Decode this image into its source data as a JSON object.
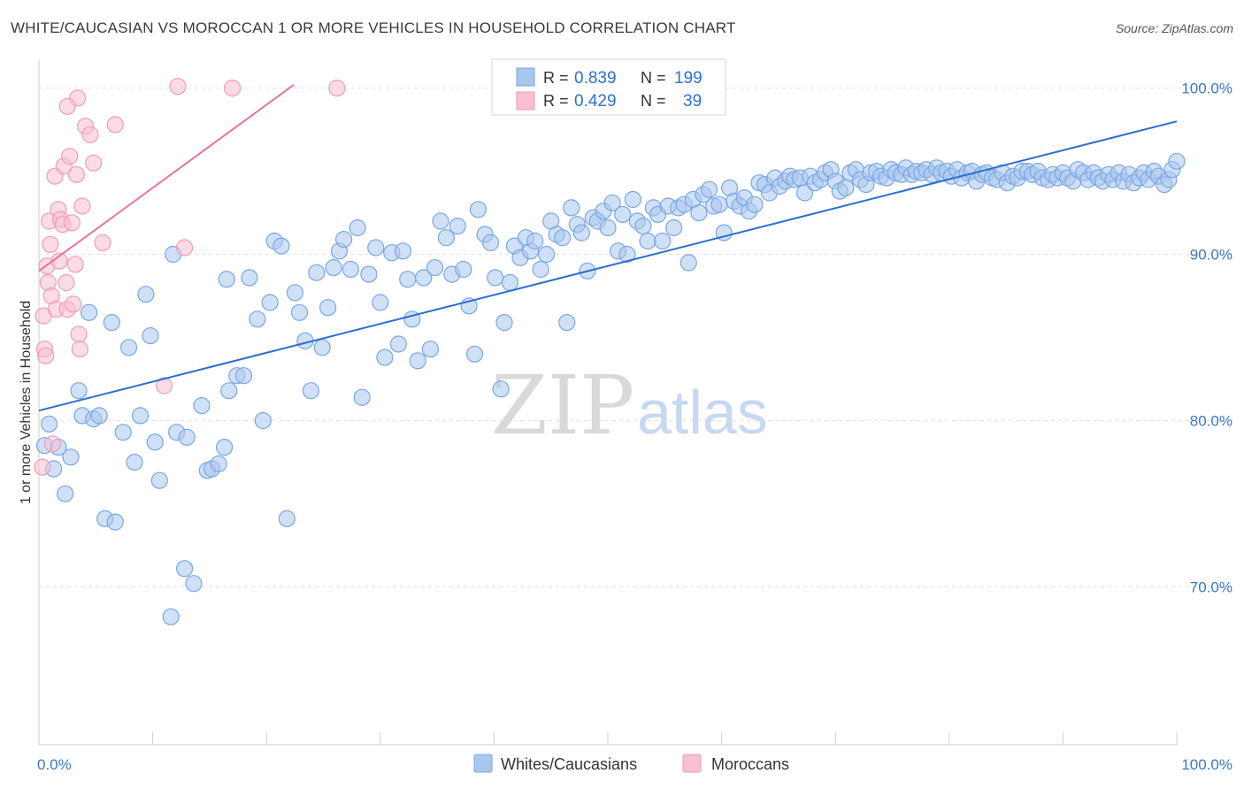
{
  "title": "WHITE/CAUCASIAN VS MOROCCAN 1 OR MORE VEHICLES IN HOUSEHOLD CORRELATION CHART",
  "source": "Source: ZipAtlas.com",
  "watermark": {
    "zip": "ZIP",
    "atlas": "atlas"
  },
  "legend": {
    "rows": [
      {
        "r_label": "R =",
        "r_value": "0.839",
        "n_label": "N =",
        "n_value": "199",
        "color": "#8fb4e8"
      },
      {
        "r_label": "R =",
        "r_value": "0.429",
        "n_label": "N =",
        "n_value": "39",
        "color": "#f4a6bf"
      }
    ]
  },
  "bottom_legend": [
    "Whites/Caucasians",
    "Moroccans"
  ],
  "colors": {
    "blue_fill": "#a9c6ef",
    "blue_stroke": "#7aa6e3",
    "blue_line": "#2a6fce",
    "pink_fill": "#f7bfd1",
    "pink_stroke": "#ef9bb8",
    "pink_line": "#e8739a",
    "grid": "#e2e2e2",
    "axis_text": "#3b78c4"
  },
  "chart_data": {
    "type": "scatter",
    "xlabel": "",
    "ylabel": "1 or more Vehicles in Household",
    "x_tick_labels": [
      "0.0%",
      "100.0%"
    ],
    "y_tick_labels": [
      "70.0%",
      "80.0%",
      "90.0%",
      "100.0%"
    ],
    "y_ticks": [
      70,
      80,
      90,
      100
    ],
    "xlim": [
      0,
      100
    ],
    "ylim": [
      60.5,
      102
    ],
    "grid": true,
    "series": [
      {
        "name": "Whites/Caucasians",
        "color": "#a9c6ef",
        "trend": {
          "x": [
            0,
            100
          ],
          "y": [
            80.6,
            98.0
          ]
        },
        "points": [
          [
            0.5,
            78.5
          ],
          [
            0.9,
            79.8
          ],
          [
            1.3,
            77.1
          ],
          [
            1.7,
            78.4
          ],
          [
            2.3,
            75.6
          ],
          [
            2.8,
            77.8
          ],
          [
            3.5,
            81.8
          ],
          [
            3.8,
            80.3
          ],
          [
            4.4,
            86.5
          ],
          [
            4.8,
            80.1
          ],
          [
            5.3,
            80.3
          ],
          [
            5.8,
            74.1
          ],
          [
            6.4,
            85.9
          ],
          [
            6.7,
            73.9
          ],
          [
            7.4,
            79.3
          ],
          [
            7.9,
            84.4
          ],
          [
            8.4,
            77.5
          ],
          [
            8.9,
            80.3
          ],
          [
            9.4,
            87.6
          ],
          [
            9.8,
            85.1
          ],
          [
            10.2,
            78.7
          ],
          [
            10.6,
            76.4
          ],
          [
            11.8,
            90.0
          ],
          [
            12.1,
            79.3
          ],
          [
            12.8,
            71.1
          ],
          [
            13.0,
            79.0
          ],
          [
            13.6,
            70.2
          ],
          [
            14.3,
            80.9
          ],
          [
            14.8,
            77.0
          ],
          [
            15.2,
            77.1
          ],
          [
            15.8,
            77.4
          ],
          [
            16.3,
            78.4
          ],
          [
            16.7,
            81.8
          ],
          [
            16.5,
            88.5
          ],
          [
            17.4,
            82.7
          ],
          [
            18.0,
            82.7
          ],
          [
            18.5,
            88.6
          ],
          [
            19.2,
            86.1
          ],
          [
            19.7,
            80.0
          ],
          [
            20.3,
            87.1
          ],
          [
            20.7,
            90.8
          ],
          [
            21.3,
            90.5
          ],
          [
            21.8,
            74.1
          ],
          [
            22.5,
            87.7
          ],
          [
            22.9,
            86.5
          ],
          [
            23.4,
            84.8
          ],
          [
            23.9,
            81.8
          ],
          [
            24.4,
            88.9
          ],
          [
            24.9,
            84.4
          ],
          [
            25.4,
            86.8
          ],
          [
            25.9,
            89.2
          ],
          [
            26.4,
            90.2
          ],
          [
            26.8,
            90.9
          ],
          [
            27.4,
            89.1
          ],
          [
            28.0,
            91.6
          ],
          [
            28.4,
            81.4
          ],
          [
            29.0,
            88.8
          ],
          [
            29.6,
            90.4
          ],
          [
            30.0,
            87.1
          ],
          [
            30.4,
            83.8
          ],
          [
            31.0,
            90.1
          ],
          [
            31.6,
            84.6
          ],
          [
            32.0,
            90.2
          ],
          [
            32.4,
            88.5
          ],
          [
            32.8,
            86.1
          ],
          [
            33.3,
            83.6
          ],
          [
            33.8,
            88.6
          ],
          [
            34.4,
            84.3
          ],
          [
            34.8,
            89.2
          ],
          [
            35.3,
            92.0
          ],
          [
            35.8,
            91.0
          ],
          [
            36.3,
            88.8
          ],
          [
            36.8,
            91.7
          ],
          [
            37.3,
            89.1
          ],
          [
            37.8,
            86.9
          ],
          [
            38.3,
            84.0
          ],
          [
            38.6,
            92.7
          ],
          [
            39.2,
            91.2
          ],
          [
            39.7,
            90.7
          ],
          [
            40.1,
            88.6
          ],
          [
            40.6,
            81.9
          ],
          [
            40.9,
            85.9
          ],
          [
            41.4,
            88.3
          ],
          [
            41.8,
            90.5
          ],
          [
            42.3,
            89.8
          ],
          [
            42.8,
            91.0
          ],
          [
            43.2,
            90.2
          ],
          [
            43.6,
            90.8
          ],
          [
            44.1,
            89.1
          ],
          [
            44.6,
            90.0
          ],
          [
            45.0,
            92.0
          ],
          [
            45.5,
            91.2
          ],
          [
            46.0,
            91.0
          ],
          [
            46.4,
            85.9
          ],
          [
            46.8,
            92.8
          ],
          [
            47.3,
            91.8
          ],
          [
            47.7,
            91.3
          ],
          [
            48.2,
            89.0
          ],
          [
            48.7,
            92.2
          ],
          [
            49.1,
            92.0
          ],
          [
            49.6,
            92.6
          ],
          [
            50.0,
            91.6
          ],
          [
            50.4,
            93.1
          ],
          [
            50.9,
            90.2
          ],
          [
            51.3,
            92.4
          ],
          [
            51.7,
            90.0
          ],
          [
            52.2,
            93.3
          ],
          [
            52.6,
            92.0
          ],
          [
            53.1,
            91.7
          ],
          [
            53.5,
            90.8
          ],
          [
            54.0,
            92.8
          ],
          [
            54.4,
            92.4
          ],
          [
            54.8,
            90.8
          ],
          [
            55.3,
            92.9
          ],
          [
            55.8,
            91.6
          ],
          [
            56.2,
            92.8
          ],
          [
            56.7,
            93.0
          ],
          [
            57.1,
            89.5
          ],
          [
            57.5,
            93.3
          ],
          [
            58.0,
            92.5
          ],
          [
            58.4,
            93.6
          ],
          [
            58.9,
            93.9
          ],
          [
            59.3,
            92.9
          ],
          [
            59.8,
            93.0
          ],
          [
            60.2,
            91.3
          ],
          [
            60.7,
            94.0
          ],
          [
            61.1,
            93.2
          ],
          [
            61.6,
            92.9
          ],
          [
            62.0,
            93.4
          ],
          [
            62.4,
            92.6
          ],
          [
            62.9,
            93.0
          ],
          [
            63.3,
            94.3
          ],
          [
            63.8,
            94.2
          ],
          [
            64.2,
            93.7
          ],
          [
            64.7,
            94.6
          ],
          [
            65.1,
            94.1
          ],
          [
            65.6,
            94.4
          ],
          [
            66.0,
            94.7
          ],
          [
            66.4,
            94.5
          ],
          [
            66.9,
            94.6
          ],
          [
            67.3,
            93.7
          ],
          [
            67.8,
            94.7
          ],
          [
            68.2,
            94.3
          ],
          [
            68.7,
            94.5
          ],
          [
            69.1,
            94.9
          ],
          [
            69.6,
            95.1
          ],
          [
            70.0,
            94.4
          ],
          [
            70.4,
            93.8
          ],
          [
            70.9,
            94.0
          ],
          [
            71.3,
            94.9
          ],
          [
            71.8,
            95.1
          ],
          [
            72.2,
            94.5
          ],
          [
            72.7,
            94.2
          ],
          [
            73.1,
            94.9
          ],
          [
            73.6,
            95.0
          ],
          [
            74.0,
            94.7
          ],
          [
            74.5,
            94.6
          ],
          [
            74.9,
            95.1
          ],
          [
            75.3,
            94.9
          ],
          [
            75.8,
            94.8
          ],
          [
            76.2,
            95.2
          ],
          [
            76.7,
            94.8
          ],
          [
            77.1,
            95.0
          ],
          [
            77.6,
            94.9
          ],
          [
            78.0,
            95.1
          ],
          [
            78.5,
            94.8
          ],
          [
            78.9,
            95.2
          ],
          [
            79.3,
            94.9
          ],
          [
            79.8,
            95.0
          ],
          [
            80.2,
            94.7
          ],
          [
            80.7,
            95.1
          ],
          [
            81.1,
            94.6
          ],
          [
            81.6,
            94.9
          ],
          [
            82.0,
            95.0
          ],
          [
            82.4,
            94.4
          ],
          [
            82.9,
            94.8
          ],
          [
            83.3,
            94.9
          ],
          [
            83.8,
            94.6
          ],
          [
            84.2,
            94.5
          ],
          [
            84.7,
            94.9
          ],
          [
            85.1,
            94.3
          ],
          [
            85.6,
            94.7
          ],
          [
            86.0,
            94.6
          ],
          [
            86.4,
            95.0
          ],
          [
            86.9,
            95.0
          ],
          [
            87.3,
            94.8
          ],
          [
            87.8,
            95.0
          ],
          [
            88.2,
            94.6
          ],
          [
            88.7,
            94.5
          ],
          [
            89.1,
            94.8
          ],
          [
            89.5,
            94.6
          ],
          [
            90.0,
            94.9
          ],
          [
            90.4,
            94.6
          ],
          [
            90.9,
            94.4
          ],
          [
            91.3,
            95.1
          ],
          [
            91.8,
            94.9
          ],
          [
            92.2,
            94.5
          ],
          [
            92.7,
            94.9
          ],
          [
            93.1,
            94.6
          ],
          [
            93.5,
            94.4
          ],
          [
            94.0,
            94.8
          ],
          [
            94.4,
            94.5
          ],
          [
            94.9,
            94.9
          ],
          [
            95.3,
            94.4
          ],
          [
            95.8,
            94.8
          ],
          [
            96.2,
            94.3
          ],
          [
            96.7,
            94.6
          ],
          [
            97.1,
            94.9
          ],
          [
            97.5,
            94.5
          ],
          [
            98.0,
            95.0
          ],
          [
            98.4,
            94.7
          ],
          [
            98.9,
            94.2
          ],
          [
            99.3,
            94.5
          ],
          [
            99.6,
            95.1
          ],
          [
            100.0,
            95.6
          ],
          [
            11.6,
            68.2
          ]
        ]
      },
      {
        "name": "Moroccans",
        "color": "#f7bfd1",
        "trend": {
          "x": [
            0,
            22.4
          ],
          "y": [
            89.0,
            100.2
          ]
        },
        "points": [
          [
            0.3,
            77.2
          ],
          [
            0.4,
            86.3
          ],
          [
            0.5,
            84.3
          ],
          [
            0.6,
            83.9
          ],
          [
            0.7,
            89.3
          ],
          [
            0.8,
            88.3
          ],
          [
            0.9,
            92.0
          ],
          [
            1.0,
            90.6
          ],
          [
            1.1,
            87.5
          ],
          [
            1.2,
            78.6
          ],
          [
            1.4,
            94.7
          ],
          [
            1.5,
            86.7
          ],
          [
            1.7,
            92.7
          ],
          [
            1.8,
            89.6
          ],
          [
            1.9,
            92.1
          ],
          [
            2.1,
            91.8
          ],
          [
            2.2,
            95.3
          ],
          [
            2.4,
            88.3
          ],
          [
            2.5,
            86.7
          ],
          [
            2.7,
            95.9
          ],
          [
            2.9,
            91.9
          ],
          [
            3.0,
            87.0
          ],
          [
            3.2,
            89.4
          ],
          [
            3.3,
            94.8
          ],
          [
            3.4,
            99.4
          ],
          [
            3.5,
            85.2
          ],
          [
            3.6,
            84.3
          ],
          [
            3.8,
            92.9
          ],
          [
            4.1,
            97.7
          ],
          [
            4.5,
            97.2
          ],
          [
            4.8,
            95.5
          ],
          [
            5.6,
            90.7
          ],
          [
            6.7,
            97.8
          ],
          [
            11.0,
            82.1
          ],
          [
            12.2,
            100.1
          ],
          [
            12.8,
            90.4
          ],
          [
            17.0,
            100.0
          ],
          [
            26.2,
            100.0
          ],
          [
            2.5,
            98.9
          ]
        ]
      }
    ]
  }
}
